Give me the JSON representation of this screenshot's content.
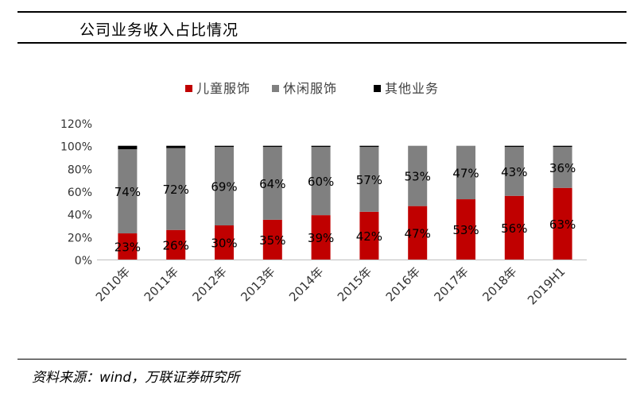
{
  "header": {
    "title": "公司业务收入占比情况"
  },
  "footer": {
    "source": "资料来源：wind，万联证券研究所"
  },
  "colors": {
    "children": "#c00000",
    "casual": "#808080",
    "other": "#000000"
  },
  "chart_data": {
    "type": "bar",
    "stacked": true,
    "categories": [
      "2010年",
      "2011年",
      "2012年",
      "2013年",
      "2014年",
      "2015年",
      "2016年",
      "2017年",
      "2018年",
      "2019H1"
    ],
    "series": [
      {
        "name": "儿童服饰",
        "values": [
          23,
          26,
          30,
          35,
          39,
          42,
          47,
          53,
          56,
          63
        ],
        "labels": [
          "23%",
          "26%",
          "30%",
          "35%",
          "39%",
          "42%",
          "47%",
          "53%",
          "56%",
          "63%"
        ]
      },
      {
        "name": "休闲服饰",
        "values": [
          74,
          72,
          69,
          64,
          60,
          57,
          53,
          47,
          43,
          36
        ],
        "labels": [
          "74%",
          "72%",
          "69%",
          "64%",
          "60%",
          "57%",
          "53%",
          "47%",
          "43%",
          "36%"
        ]
      },
      {
        "name": "其他业务",
        "values": [
          3,
          2,
          1,
          1,
          1,
          1,
          0,
          0,
          1,
          1
        ]
      }
    ],
    "ylim": [
      0,
      120
    ],
    "yticks": [
      "0%",
      "20%",
      "40%",
      "60%",
      "80%",
      "100%",
      "120%"
    ],
    "grid": false,
    "legend_position": "top"
  }
}
